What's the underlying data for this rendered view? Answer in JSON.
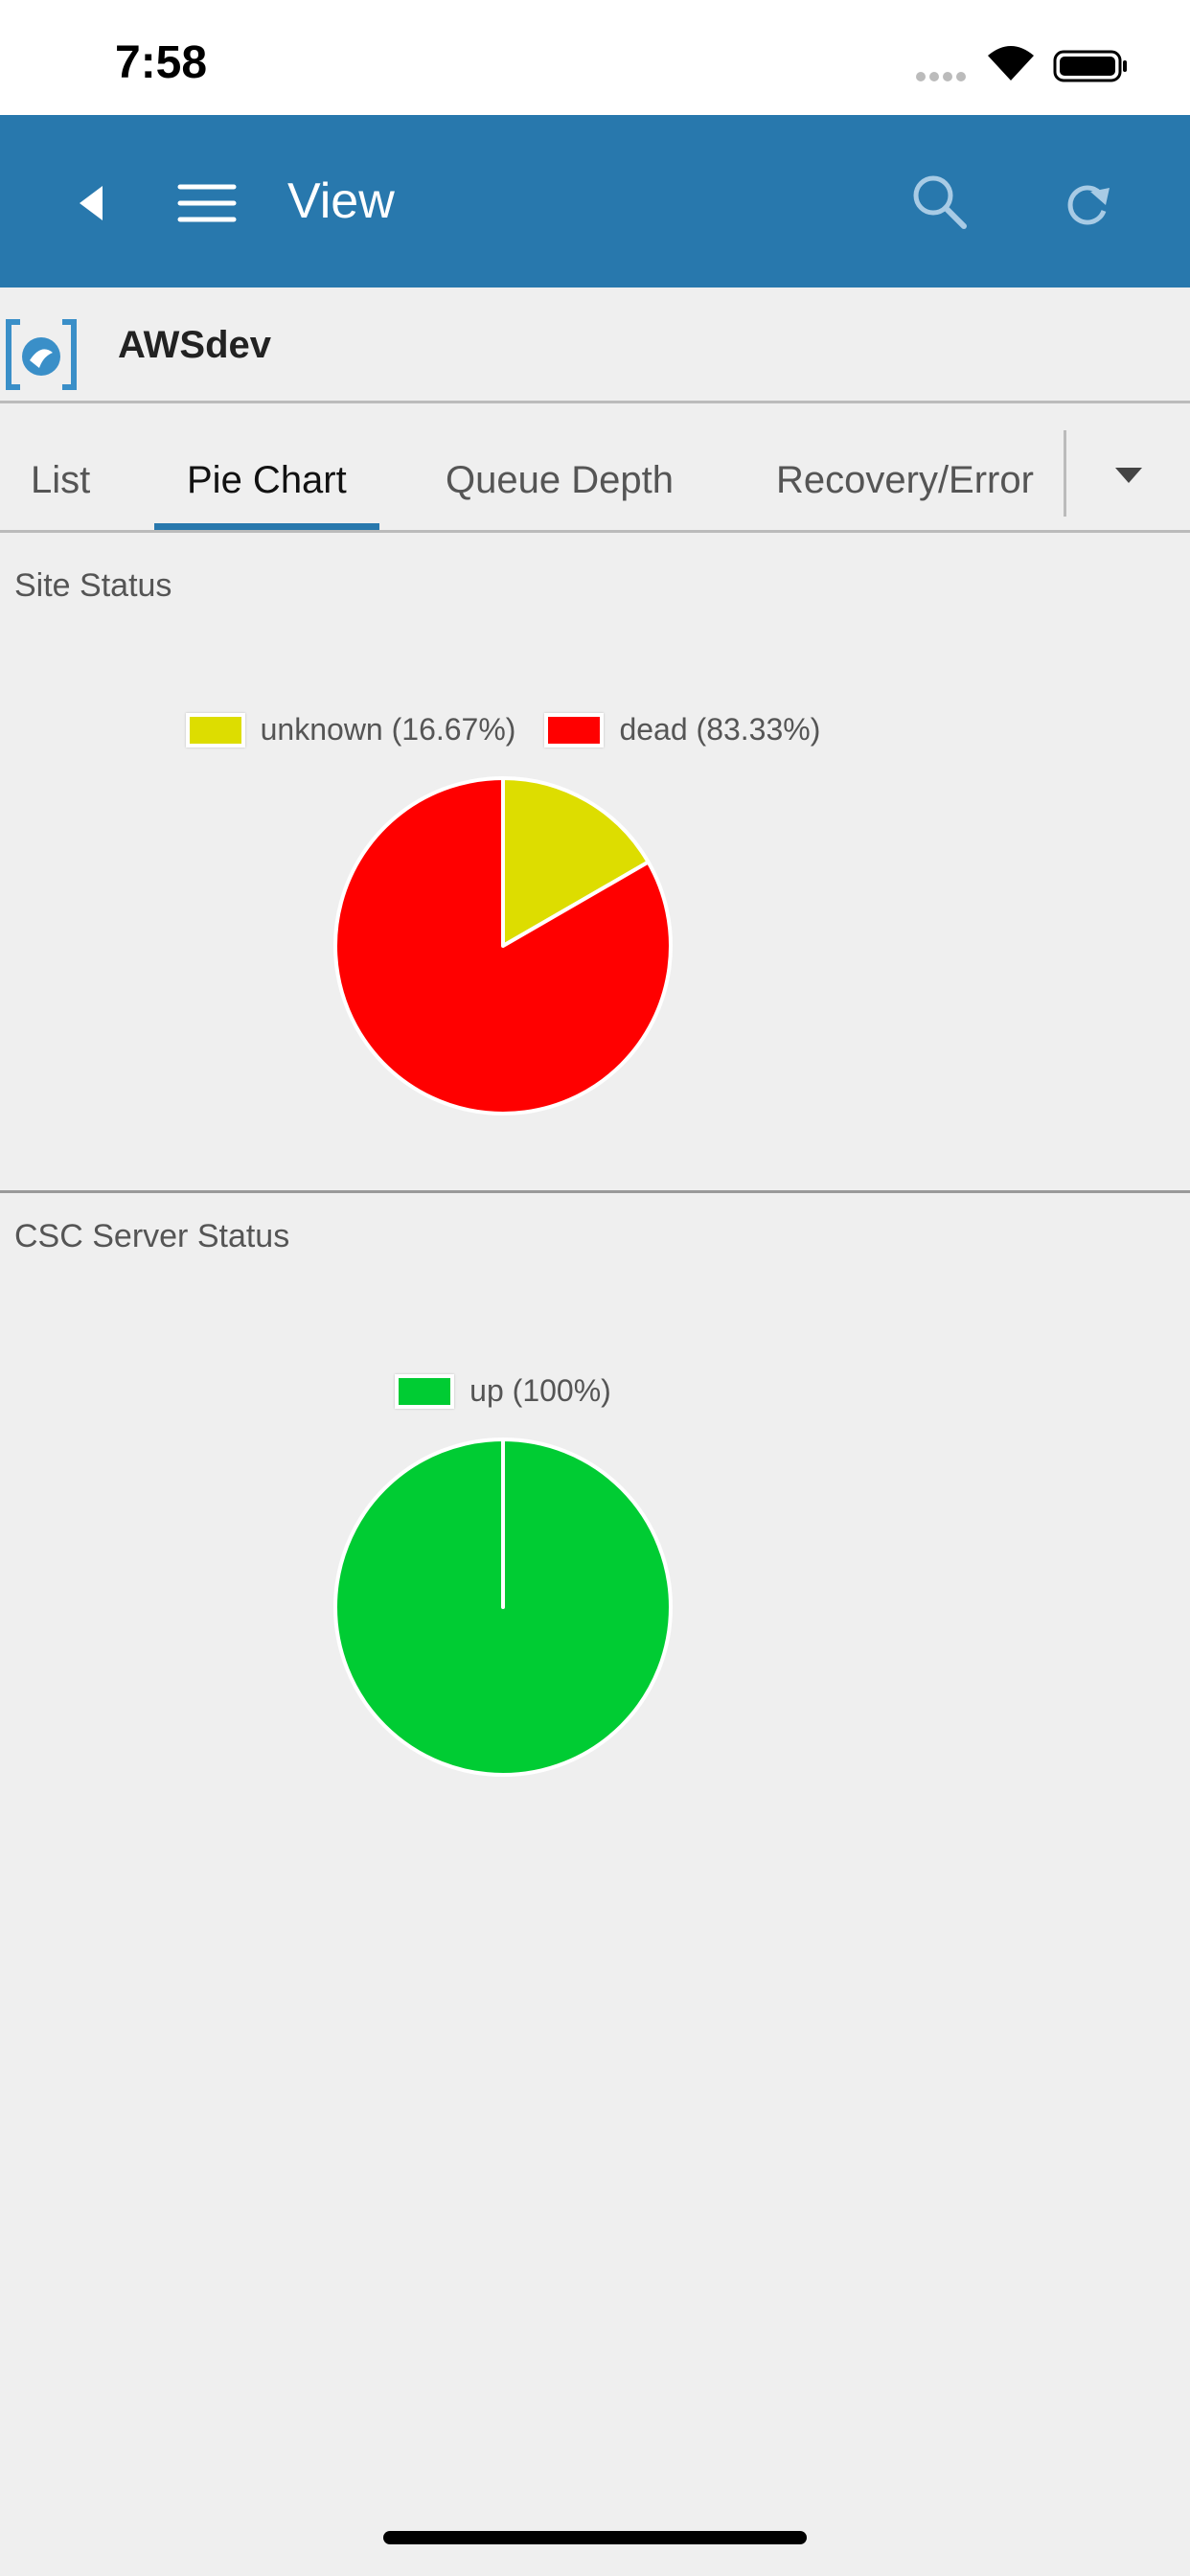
{
  "status_bar": {
    "time": "7:58"
  },
  "nav_bar": {
    "title": "View"
  },
  "app": {
    "name": "AWSdev"
  },
  "tabs": {
    "items": [
      "List",
      "Pie Chart",
      "Queue Depth",
      "Recovery/Error"
    ],
    "selected": 1
  },
  "chart_data": [
    {
      "type": "pie",
      "title": "Site Status",
      "categories": [
        "unknown (16.67%)",
        "dead (83.33%)"
      ],
      "values": [
        16.67,
        83.33
      ],
      "colors": [
        "#dddd00",
        "#ff0000"
      ],
      "legend": "top"
    },
    {
      "type": "pie",
      "title": "CSC Server Status",
      "categories": [
        "up (100%)"
      ],
      "values": [
        100
      ],
      "colors": [
        "#00cc33"
      ],
      "legend": "top"
    }
  ]
}
